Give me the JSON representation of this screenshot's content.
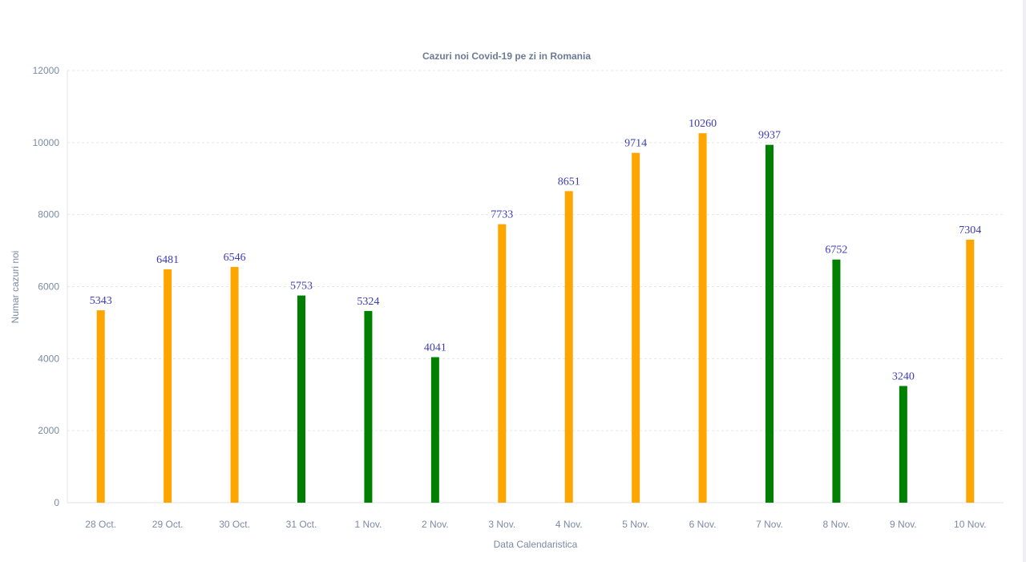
{
  "chart_data": {
    "type": "bar",
    "title": "Cazuri noi Covid-19 pe zi in Romania",
    "xlabel": "Data Calendaristica",
    "ylabel": "Numar cazuri noi",
    "ylim": [
      0,
      12000
    ],
    "yticks": [
      0,
      2000,
      4000,
      6000,
      8000,
      10000,
      12000
    ],
    "grid": true,
    "categories": [
      "28 Oct.",
      "29 Oct.",
      "30 Oct.",
      "31 Oct.",
      "1 Nov.",
      "2 Nov.",
      "3 Nov.",
      "4 Nov.",
      "5 Nov.",
      "6 Nov.",
      "7 Nov.",
      "8 Nov.",
      "9 Nov.",
      "10 Nov."
    ],
    "values": [
      5343,
      6481,
      6546,
      5753,
      5324,
      4041,
      7733,
      8651,
      9714,
      10260,
      9937,
      6752,
      3240,
      7304
    ],
    "bar_colors": [
      "#ffa500",
      "#ffa500",
      "#ffa500",
      "#008000",
      "#008000",
      "#008000",
      "#ffa500",
      "#ffa500",
      "#ffa500",
      "#ffa500",
      "#008000",
      "#008000",
      "#008000",
      "#ffa500"
    ],
    "data_labels": [
      "5343",
      "6481",
      "6546",
      "5753",
      "5324",
      "4041",
      "7733",
      "8651",
      "9714",
      "10260",
      "9937",
      "6752",
      "3240",
      "7304"
    ]
  }
}
